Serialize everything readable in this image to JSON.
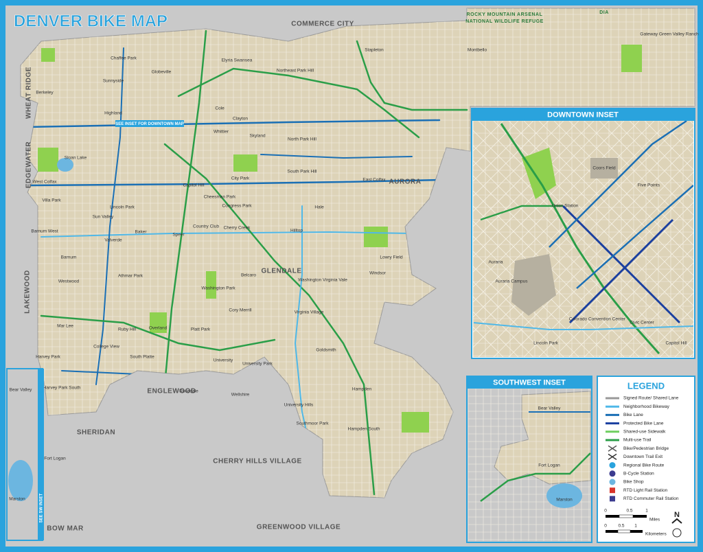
{
  "title": "DENVER BIKE MAP",
  "places": [
    "COMMERCE CITY",
    "WHEAT RIDGE",
    "EDGEWATER",
    "LAKEWOOD",
    "AURORA",
    "GLENDALE",
    "ENGLEWOOD",
    "SHERIDAN",
    "CHERRY HILLS VILLAGE",
    "BOW MAR",
    "GREENWOOD VILLAGE",
    "ROCKY MOUNTAIN ARSENAL",
    "NATIONAL WILDLIFE REFUGE",
    "DIA"
  ],
  "neighborhoods": [
    "Chaffee Park",
    "Globeville",
    "Elyria Swansea",
    "Sunnyside",
    "Berkeley",
    "Highland",
    "Northeast Park Hill",
    "Stapleton",
    "Montbello",
    "Gateway Green Valley Ranch",
    "Cole",
    "Clayton",
    "Whittier",
    "Skyland",
    "North Park Hill",
    "West Colfax",
    "Sloan Lake",
    "Villa Park",
    "Barnum West",
    "Barnum",
    "Westwood",
    "Mar Lee",
    "Harvey Park",
    "Harvey Park South",
    "Bear Valley",
    "Fort Logan",
    "Marston",
    "Valverde",
    "Athmar Park",
    "Ruby Hill",
    "College View",
    "South Platte",
    "Overland",
    "Rosedale",
    "University",
    "University Park",
    "Wellshire",
    "Platt Park",
    "Washington Park",
    "Belcaro",
    "Cory Merrill",
    "Baker",
    "Speer",
    "Country Club",
    "Cherry Creek",
    "Congress Park",
    "Hale",
    "Hilltop",
    "South Park Hill",
    "East Colfax",
    "Lowry Field",
    "Windsor",
    "Washington Virginia Vale",
    "Goldsmith",
    "Hampden",
    "Hampden South",
    "Southmoor Park",
    "University Hills",
    "Virginia Village",
    "Lincoln Park",
    "Sun Valley",
    "City Park",
    "Cheesman Park",
    "Capitol Hill"
  ],
  "callouts": [
    "SEE INSET FOR DOWNTOWN MAP",
    "SEE SW INSET"
  ],
  "downtown_inset": {
    "title": "DOWNTOWN INSET",
    "labels": [
      "Union Station",
      "Auraria",
      "Auraria Campus",
      "Colorado Convention Center",
      "Lincoln Park",
      "Five Points",
      "Civic Center",
      "Capitol Hill",
      "Coors Field"
    ]
  },
  "southwest_inset": {
    "title": "SOUTHWEST INSET",
    "labels": [
      "Bear Valley",
      "Fort Logan",
      "Marston"
    ]
  },
  "legend": {
    "title": "LEGEND",
    "items": [
      "Signed Route/ Shared Lane",
      "Neighborhood Bikeway",
      "Bike Lane",
      "Protected Bike Lane",
      "Shared-use Sidewalk",
      "Multi-use Trail",
      "Bike/Pedestrian Bridge",
      "Downtown Trail Exit",
      "Regional Bike Route",
      "B-Cycle Station",
      "Bike Shop",
      "RTD Light Rail Station",
      "RTD Commuter Rail Station"
    ],
    "scale_miles": [
      "0",
      "0.5",
      "1",
      "Miles"
    ],
    "scale_km": [
      "0",
      "0.5",
      "1",
      "Kilometers"
    ],
    "north": "N"
  }
}
